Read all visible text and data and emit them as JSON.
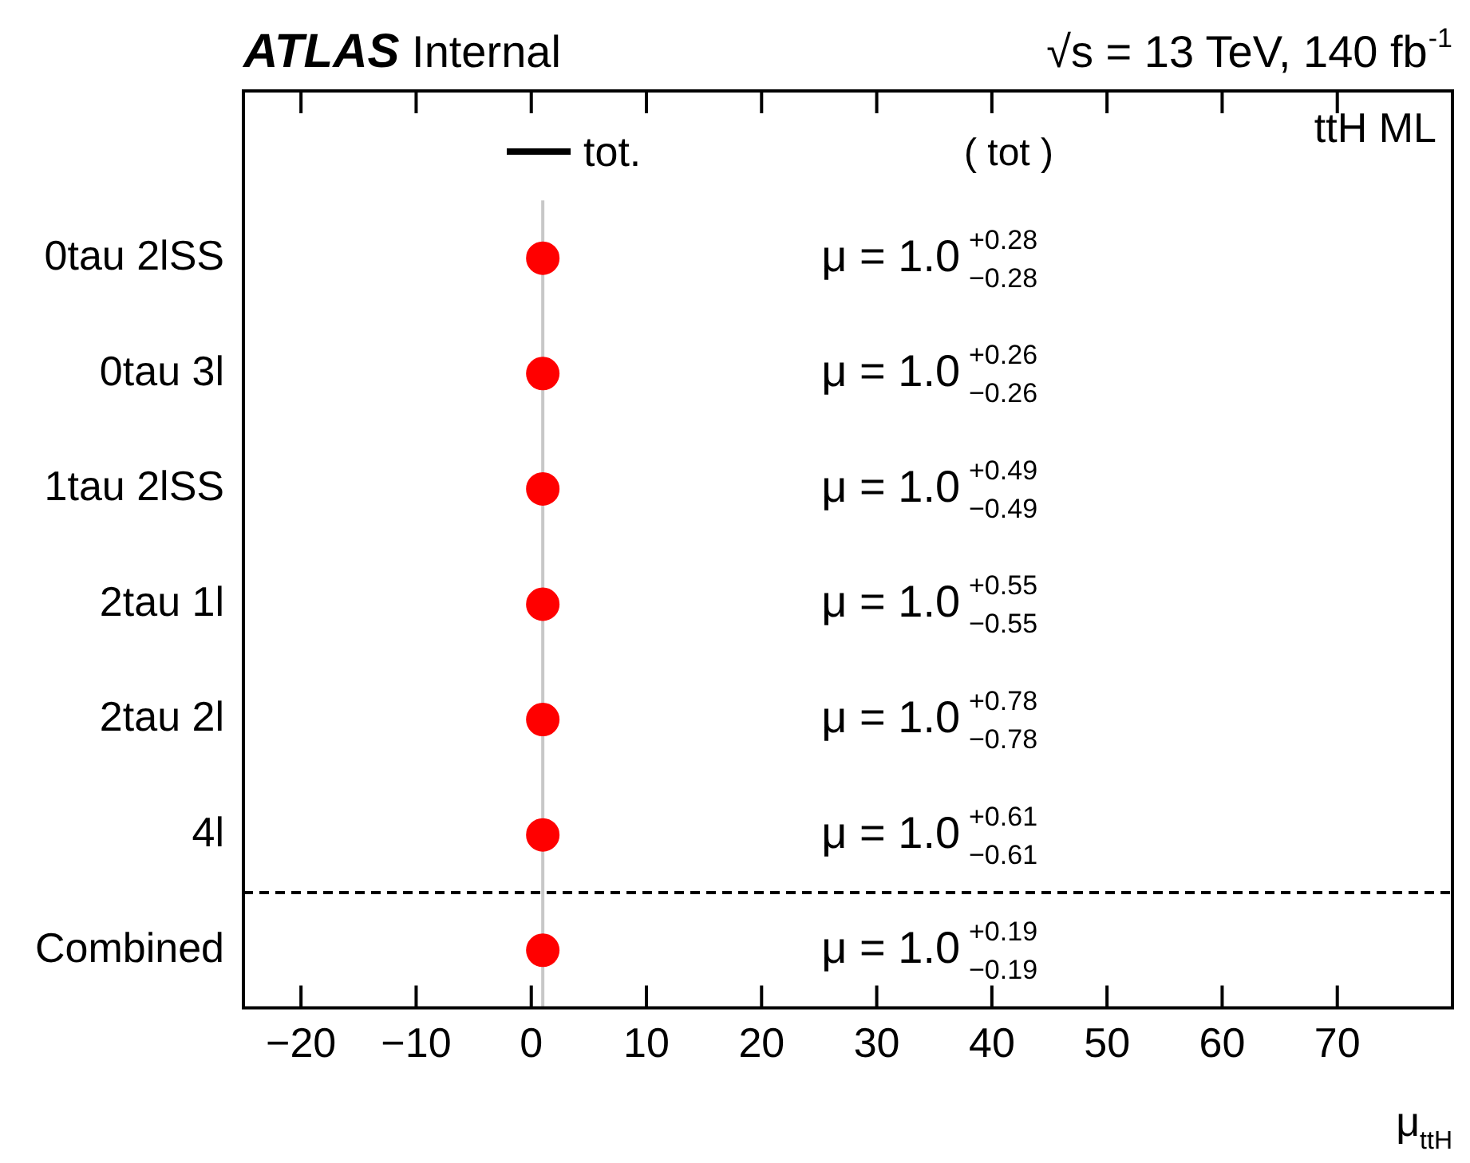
{
  "chart_data": {
    "type": "scatter",
    "orientation": "horizontal",
    "title": "ATLAS Internal",
    "subtitle": "√s = 13 TeV, 140 fb$^{-1}$",
    "xlabel": "μ$_{ttH}$",
    "categories": [
      "0tau 2lSS",
      "0tau 3l",
      "1tau 2lSS",
      "2tau 1l",
      "2tau 2l",
      "4l",
      "Combined"
    ],
    "series": [
      {
        "name": "tot.",
        "color": "#ff0000",
        "values": [
          1.0,
          1.0,
          1.0,
          1.0,
          1.0,
          1.0,
          1.0
        ]
      }
    ],
    "annotations": [
      "ttH ML",
      "( tot )",
      "μ = 1.0",
      "+0.28",
      "−0.28",
      "μ = 1.0",
      "+0.26",
      "−0.26",
      "μ = 1.0",
      "+0.49",
      "−0.49",
      "μ = 1.0",
      "+0.55",
      "−0.55",
      "μ = 1.0",
      "+0.78",
      "−0.78",
      "μ = 1.0",
      "+0.61",
      "−0.61",
      "μ = 1.0",
      "+0.19",
      "−0.19"
    ],
    "ref_lines": [
      {
        "axis": "x",
        "value": 1,
        "color": "#c8c8c8",
        "line_style": "solid"
      }
    ],
    "xlim": [
      -25,
      80
    ],
    "xticks": [
      -20,
      -10,
      0,
      10,
      20,
      30,
      40,
      50,
      60,
      70
    ],
    "grid": false,
    "legend": "top left",
    "marker": "circle"
  }
}
